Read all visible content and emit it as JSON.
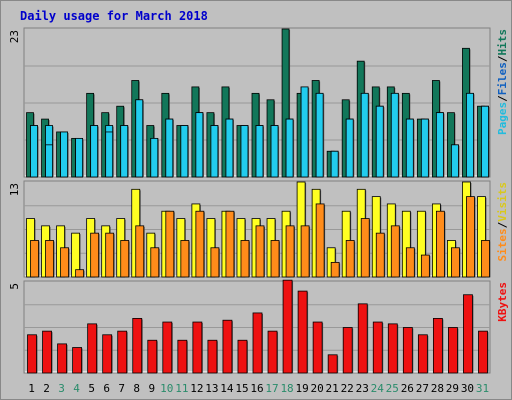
{
  "title": "Daily usage for March 2018",
  "colors": {
    "background": "#c0c0c0",
    "outer_border": "#888888",
    "grid": "#999999",
    "title": "#0000cc",
    "weekday": "#000000",
    "weekend": "#2a8c6b",
    "hits": "#12775a",
    "files": "#22ccee",
    "pages": "#22ccee",
    "visits": "#ffff22",
    "sites": "#ff8c1a",
    "kbytes": "#ee1111",
    "legend_hits": "#12775a",
    "legend_files": "#1060c0",
    "legend_pages": "#22bbdd",
    "legend_visits": "#d9c81c",
    "legend_sites": "#ff8c1a",
    "legend_kbytes": "#ee1111"
  },
  "chart_data": {
    "type": "bar",
    "title": "Daily usage for March 2018",
    "categories": [
      "1",
      "2",
      "3",
      "4",
      "5",
      "6",
      "7",
      "8",
      "9",
      "10",
      "11",
      "12",
      "13",
      "14",
      "15",
      "16",
      "17",
      "18",
      "19",
      "20",
      "21",
      "22",
      "23",
      "24",
      "25",
      "26",
      "27",
      "28",
      "29",
      "30",
      "31"
    ],
    "weekend_days": [
      "3",
      "4",
      "10",
      "11",
      "17",
      "18",
      "24",
      "25",
      "31"
    ],
    "panels": [
      {
        "name": "hits-files-pages",
        "ymax": 23,
        "ymax_label": "23",
        "legend": [
          "Pages",
          "/",
          "Files",
          "/",
          "Hits"
        ],
        "series": [
          {
            "name": "Hits",
            "values": [
              10,
              9,
              7,
              6,
              13,
              10,
              11,
              15,
              8,
              13,
              8,
              14,
              10,
              14,
              8,
              13,
              12,
              23,
              13,
              15,
              4,
              12,
              18,
              14,
              14,
              13,
              9,
              15,
              10,
              20,
              11
            ]
          },
          {
            "name": "Files",
            "values": [
              8,
              8,
              7,
              6,
              8,
              8,
              8,
              12,
              6,
              9,
              8,
              10,
              8,
              9,
              8,
              8,
              8,
              9,
              14,
              13,
              4,
              9,
              13,
              11,
              13,
              9,
              9,
              10,
              5,
              13,
              11
            ]
          },
          {
            "name": "Pages",
            "values": [
              8,
              5,
              7,
              6,
              8,
              7,
              8,
              12,
              6,
              9,
              8,
              10,
              8,
              9,
              8,
              8,
              8,
              9,
              14,
              13,
              4,
              9,
              13,
              11,
              13,
              9,
              9,
              10,
              5,
              13,
              11
            ]
          }
        ]
      },
      {
        "name": "visits-sites",
        "ymax": 13,
        "ymax_label": "13",
        "legend": [
          "Sites",
          "/",
          "Visits"
        ],
        "series": [
          {
            "name": "Visits",
            "values": [
              8,
              7,
              7,
              6,
              8,
              7,
              8,
              12,
              6,
              9,
              8,
              10,
              8,
              9,
              8,
              8,
              8,
              9,
              13,
              12,
              4,
              9,
              12,
              11,
              10,
              9,
              9,
              10,
              5,
              13,
              11
            ]
          },
          {
            "name": "Sites",
            "values": [
              5,
              5,
              4,
              1,
              6,
              6,
              5,
              7,
              4,
              9,
              5,
              9,
              4,
              9,
              5,
              7,
              5,
              7,
              7,
              10,
              2,
              5,
              8,
              6,
              7,
              4,
              3,
              9,
              4,
              11,
              5
            ]
          }
        ]
      },
      {
        "name": "kbytes",
        "ymax": 5,
        "ymax_label": "5",
        "legend": [
          "KBytes"
        ],
        "series": [
          {
            "name": "KBytes",
            "values": [
              2.1,
              2.3,
              1.6,
              1.4,
              2.7,
              2.1,
              2.3,
              3.0,
              1.8,
              2.8,
              1.8,
              2.8,
              1.8,
              2.9,
              1.8,
              3.3,
              2.3,
              5.1,
              4.5,
              2.8,
              1.0,
              2.5,
              3.8,
              2.8,
              2.7,
              2.5,
              2.1,
              3.0,
              2.5,
              4.3,
              2.3
            ]
          }
        ]
      }
    ]
  }
}
